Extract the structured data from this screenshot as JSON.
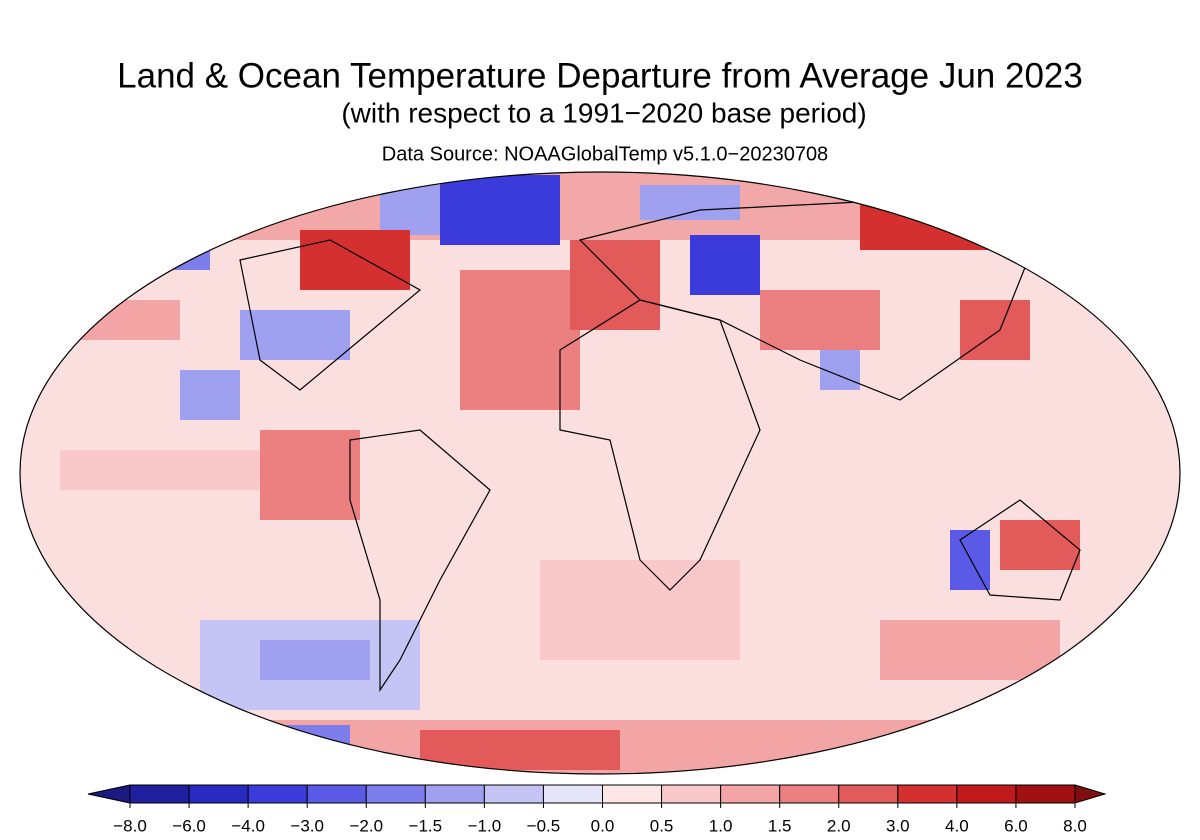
{
  "header": {
    "title": "Land & Ocean Temperature Departure from Average Jun 2023",
    "subtitle": "(with respect to a 1991−2020 base period)",
    "source": "Data Source: NOAAGlobalTemp v5.1.0−20230708"
  },
  "colorbar": {
    "ticks": [
      {
        "value": -8,
        "label": "−8.0"
      },
      {
        "value": -6,
        "label": "−6.0"
      },
      {
        "value": -4,
        "label": "−4.0"
      },
      {
        "value": -3,
        "label": "−3.0"
      },
      {
        "value": -2,
        "label": "−2.0"
      },
      {
        "value": -1.5,
        "label": "−1.5"
      },
      {
        "value": -1,
        "label": "−1.0"
      },
      {
        "value": -0.5,
        "label": "−0.5"
      },
      {
        "value": 0,
        "label": "0.0"
      },
      {
        "value": 0.5,
        "label": "0.5"
      },
      {
        "value": 1,
        "label": "1.0"
      },
      {
        "value": 1.5,
        "label": "1.5"
      },
      {
        "value": 2,
        "label": "2.0"
      },
      {
        "value": 3,
        "label": "3.0"
      },
      {
        "value": 4,
        "label": "4.0"
      },
      {
        "value": 6,
        "label": "6.0"
      },
      {
        "value": 8,
        "label": "8.0"
      }
    ],
    "colors": [
      "#1a1a80",
      "#1f1fa0",
      "#2a2ac0",
      "#3b3bdc",
      "#5a5ae6",
      "#7d7deb",
      "#a0a0f0",
      "#c5c5f5",
      "#e6e6fa",
      "#fde6e6",
      "#f9c8c8",
      "#f3a5a5",
      "#ec8080",
      "#e35a5a",
      "#d53030",
      "#c01a1a",
      "#a01010",
      "#801010"
    ]
  }
}
